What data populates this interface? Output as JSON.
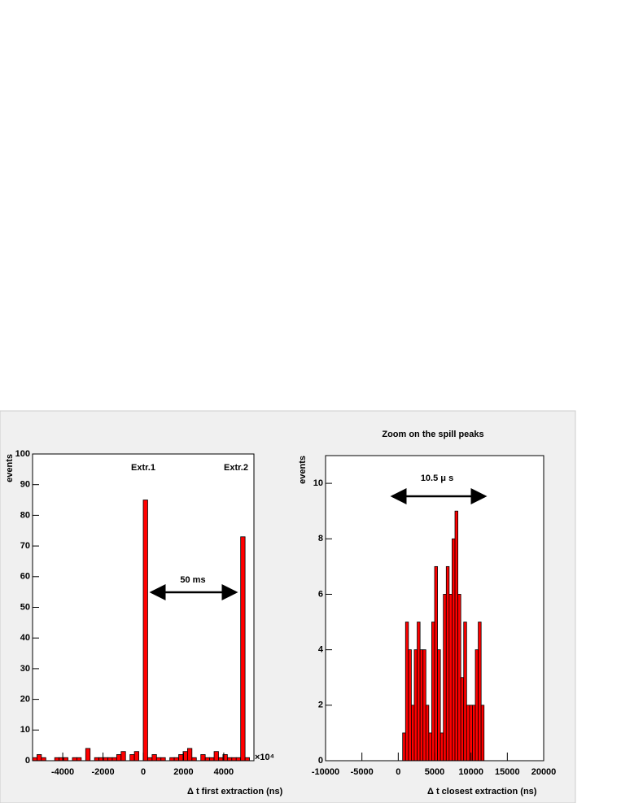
{
  "chart_data": [
    {
      "type": "histogram",
      "x_label": "Δ t first extraction (ns)",
      "y_label": "events",
      "x_multiplier": "×10⁴",
      "annotations": [
        "Extr.1",
        "Extr.2",
        "50 ms"
      ],
      "bins": [
        -5500,
        -5280,
        -5060,
        -4840,
        -4620,
        -4400,
        -4180,
        -3960,
        -3740,
        -3520,
        -3300,
        -3080,
        -2860,
        -2640,
        -2420,
        -2200,
        -1980,
        -1760,
        -1540,
        -1320,
        -1100,
        -880,
        -660,
        -440,
        -220,
        0,
        220,
        440,
        660,
        880,
        1100,
        1320,
        1540,
        1760,
        1980,
        2200,
        2420,
        2640,
        2860,
        3080,
        3300,
        3520,
        3740,
        3960,
        4180,
        4400,
        4620,
        4840,
        5060,
        5280,
        5500
      ],
      "values": [
        1,
        2,
        1,
        0,
        0,
        1,
        1,
        1,
        0,
        1,
        1,
        0,
        4,
        0,
        1,
        1,
        1,
        1,
        1,
        2,
        3,
        0,
        2,
        3,
        0,
        85,
        1,
        2,
        1,
        1,
        0,
        1,
        1,
        2,
        3,
        4,
        1,
        0,
        2,
        1,
        1,
        3,
        1,
        2,
        1,
        1,
        1,
        73,
        1,
        0
      ],
      "color": "#ff0000",
      "xlim": [
        -5500,
        5500
      ],
      "xticks": [
        -4000,
        -2000,
        0,
        2000,
        4000
      ],
      "ylim": [
        0,
        100
      ],
      "yticks": [
        0,
        10,
        20,
        30,
        40,
        50,
        60,
        70,
        80,
        90,
        100
      ],
      "grid": false
    },
    {
      "type": "histogram",
      "title": "Zoom on the spill peaks",
      "x_label": "Δ t closest extraction (ns)",
      "y_label": "events",
      "annotations": [
        "10.5 μ s"
      ],
      "bins": [
        600,
        1000,
        1400,
        1800,
        2200,
        2600,
        3000,
        3400,
        3800,
        4200,
        4600,
        5000,
        5400,
        5800,
        6200,
        6600,
        7000,
        7400,
        7800,
        8200,
        8600,
        9000,
        9400,
        9800,
        10200,
        10600,
        11000,
        11400,
        11800
      ],
      "values": [
        1,
        5,
        4,
        2,
        4,
        5,
        4,
        4,
        2,
        1,
        5,
        7,
        4,
        1,
        6,
        7,
        6,
        8,
        9,
        6,
        3,
        5,
        2,
        2,
        2,
        4,
        5,
        2
      ],
      "color": "#ff0000",
      "xlim": [
        -10000,
        20000
      ],
      "xticks": [
        -10000,
        -5000,
        0,
        5000,
        10000,
        15000,
        20000
      ],
      "ylim": [
        0,
        11
      ],
      "yticks": [
        0,
        2,
        4,
        6,
        8,
        10
      ],
      "grid": false
    }
  ]
}
